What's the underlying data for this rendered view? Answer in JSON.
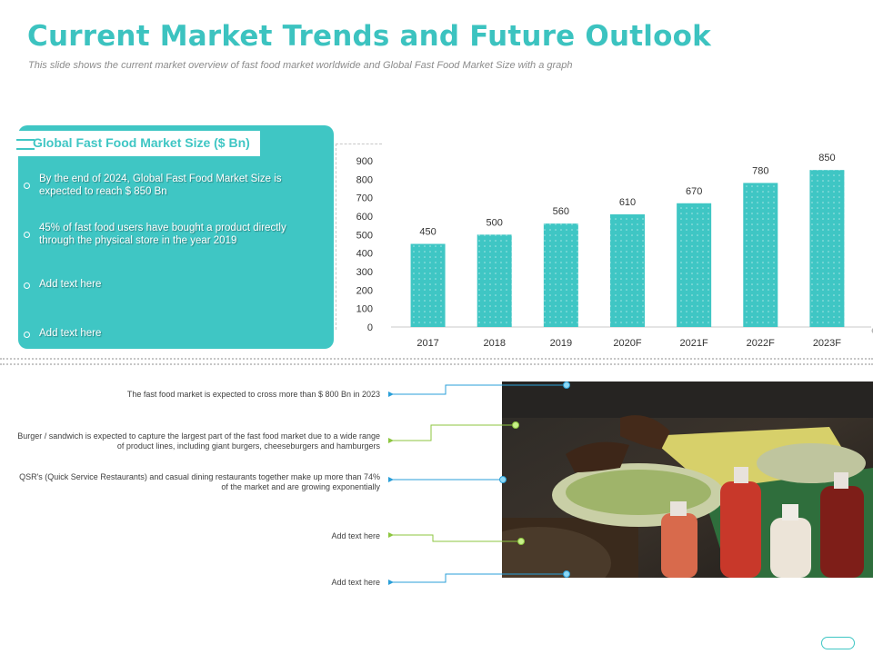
{
  "header": {
    "title": "Current Market Trends and Future Outlook",
    "subtitle": "This slide shows the current market overview of fast food market worldwide and Global Fast Food Market Size with a graph"
  },
  "panel": {
    "title": "Global Fast Food Market Size ($ Bn)",
    "bullets": [
      "By the end of 2024, Global Fast Food Market Size is expected to reach $ 850 Bn",
      "45% of fast food users have bought a product directly through the physical store in the year 2019",
      "Add text here",
      "Add text here"
    ]
  },
  "chart_data": {
    "type": "bar",
    "title": "Global Fast Food Market Size ($ Bn)",
    "categories": [
      "2017",
      "2018",
      "2019",
      "2020F",
      "2021F",
      "2022F",
      "2023F"
    ],
    "values": [
      450,
      500,
      560,
      610,
      670,
      780,
      850
    ],
    "yticks": [
      "0",
      "100",
      "200",
      "300",
      "400",
      "500",
      "600",
      "700",
      "800",
      "900"
    ],
    "ylim": [
      0,
      900
    ],
    "xlabel": "",
    "ylabel": "",
    "bar_color": "#3fc6c4"
  },
  "notes": [
    "The fast food market is expected to cross more than $ 800 Bn in 2023",
    "Burger / sandwich is expected to capture the largest part of the fast food market due to a wide range of product lines, including giant burgers, cheeseburgers and hamburgers",
    "QSR's (Quick Service Restaurants) and casual dining restaurants together make up more than 74% of the market and are growing exponentially",
    "Add text here",
    "Add text here"
  ],
  "colors": {
    "accent": "#3fc6c4",
    "connector_blue": "#2a9fd8",
    "connector_green": "#8cc63f"
  }
}
